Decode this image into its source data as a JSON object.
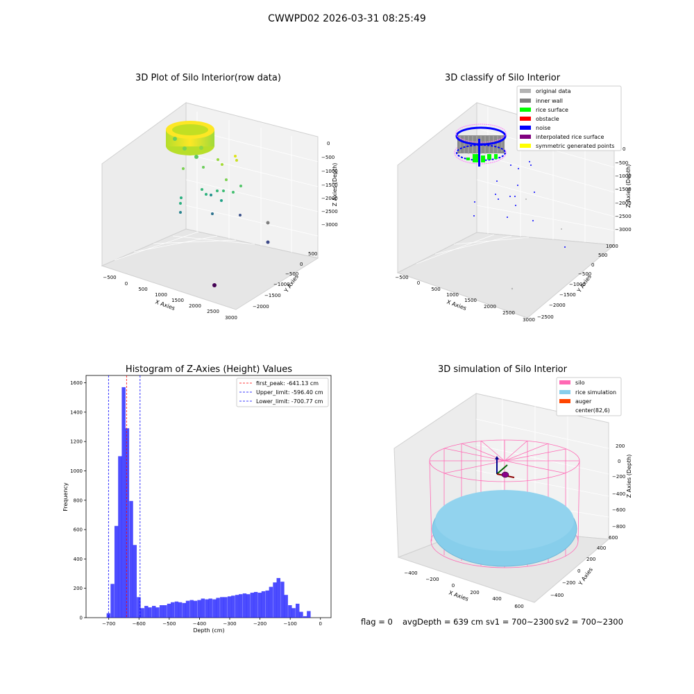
{
  "figure_title": "CWWPD02 2026-03-31 08:25:49",
  "status_line": {
    "flag": "flag = 0",
    "avg_depth": "avgDepth = 639 cm",
    "sv1": "sv1 = 700~2300",
    "sv2": "sv2 = 700~2300"
  },
  "chart_data": [
    {
      "type": "scatter",
      "projection": "3d",
      "title": "3D Plot of Silo Interior(row data)",
      "xlabel": "X Axies",
      "ylabel": "Y Axies",
      "zlabel": "Z Axies (Depth)",
      "x_ticks": [
        "−500",
        "0",
        "500",
        "1000",
        "1500",
        "2000",
        "2500",
        "3000"
      ],
      "y_ticks": [
        "500",
        "0",
        "−500",
        "−1000",
        "−1500",
        "−2000"
      ],
      "z_ticks": [
        "0",
        "−500",
        "−1000",
        "−1500",
        "−2000",
        "−2500",
        "−3000"
      ],
      "grid": true,
      "colormap": "viridis",
      "description_points": "dense ring of points near z≈−600 around center (82,6), sparse noise points down to z≈−3000"
    },
    {
      "type": "scatter",
      "projection": "3d",
      "title": "3D classify of Silo Interior",
      "xlabel": "X Axies",
      "ylabel": "Y Axies",
      "zlabel": "Z Axies (Depth)",
      "x_ticks": [
        "−500",
        "0",
        "500",
        "1000",
        "1500",
        "2000",
        "2500",
        "3000"
      ],
      "y_ticks": [
        "1000",
        "500",
        "0",
        "−500",
        "−1000",
        "−1500",
        "−2000",
        "−2500"
      ],
      "z_ticks": [
        "0",
        "−500",
        "−1000",
        "−1500",
        "−2000",
        "−2500",
        "−3000"
      ],
      "grid": true,
      "legend": [
        {
          "label": "original data",
          "color": "#b3b3b3"
        },
        {
          "label": "inner wall",
          "color": "#808080"
        },
        {
          "label": "rice surface",
          "color": "#00ff00"
        },
        {
          "label": "obstacle",
          "color": "#ff0000"
        },
        {
          "label": "noise",
          "color": "#0000ff"
        },
        {
          "label": "interpolated rice surface",
          "color": "#800080"
        },
        {
          "label": "symmetric generated points",
          "color": "#ffff00"
        }
      ],
      "legend_position": "upper-right"
    },
    {
      "type": "bar",
      "subtype": "histogram",
      "title": "Histogram of Z-Axies (Height) Values",
      "xlabel": "Depth (cm)",
      "ylabel": "Frequency",
      "xlim": [
        -775,
        35
      ],
      "ylim": [
        0,
        1650
      ],
      "x_ticks": [
        "−700",
        "−600",
        "−500",
        "−400",
        "−300",
        "−200",
        "−100",
        "0"
      ],
      "y_ticks": [
        "0",
        "200",
        "400",
        "600",
        "800",
        "1000",
        "1200",
        "1400",
        "1600"
      ],
      "bar_color": "#0000ff",
      "bin_width": 12.5,
      "bins": [
        {
          "x0": -707,
          "v": 30
        },
        {
          "x0": -694,
          "v": 230
        },
        {
          "x0": -681,
          "v": 625
        },
        {
          "x0": -669,
          "v": 1100
        },
        {
          "x0": -657,
          "v": 1570
        },
        {
          "x0": -645,
          "v": 1290
        },
        {
          "x0": -632,
          "v": 795
        },
        {
          "x0": -620,
          "v": 495
        },
        {
          "x0": -607,
          "v": 140
        },
        {
          "x0": -595,
          "v": 65
        },
        {
          "x0": -582,
          "v": 80
        },
        {
          "x0": -570,
          "v": 70
        },
        {
          "x0": -557,
          "v": 80
        },
        {
          "x0": -545,
          "v": 70
        },
        {
          "x0": -532,
          "v": 85
        },
        {
          "x0": -520,
          "v": 85
        },
        {
          "x0": -507,
          "v": 95
        },
        {
          "x0": -495,
          "v": 105
        },
        {
          "x0": -482,
          "v": 110
        },
        {
          "x0": -470,
          "v": 105
        },
        {
          "x0": -457,
          "v": 100
        },
        {
          "x0": -445,
          "v": 115
        },
        {
          "x0": -432,
          "v": 120
        },
        {
          "x0": -420,
          "v": 115
        },
        {
          "x0": -407,
          "v": 120
        },
        {
          "x0": -395,
          "v": 130
        },
        {
          "x0": -382,
          "v": 125
        },
        {
          "x0": -370,
          "v": 130
        },
        {
          "x0": -357,
          "v": 125
        },
        {
          "x0": -345,
          "v": 135
        },
        {
          "x0": -332,
          "v": 140
        },
        {
          "x0": -320,
          "v": 140
        },
        {
          "x0": -307,
          "v": 145
        },
        {
          "x0": -295,
          "v": 150
        },
        {
          "x0": -282,
          "v": 155
        },
        {
          "x0": -270,
          "v": 160
        },
        {
          "x0": -257,
          "v": 165
        },
        {
          "x0": -245,
          "v": 160
        },
        {
          "x0": -232,
          "v": 170
        },
        {
          "x0": -220,
          "v": 175
        },
        {
          "x0": -207,
          "v": 170
        },
        {
          "x0": -195,
          "v": 180
        },
        {
          "x0": -182,
          "v": 185
        },
        {
          "x0": -170,
          "v": 210
        },
        {
          "x0": -157,
          "v": 240
        },
        {
          "x0": -145,
          "v": 270
        },
        {
          "x0": -132,
          "v": 245
        },
        {
          "x0": -120,
          "v": 155
        },
        {
          "x0": -107,
          "v": 85
        },
        {
          "x0": -95,
          "v": 65
        },
        {
          "x0": -82,
          "v": 95
        },
        {
          "x0": -70,
          "v": 40
        },
        {
          "x0": -57,
          "v": 10
        },
        {
          "x0": -45,
          "v": 45
        }
      ],
      "vlines": [
        {
          "label": "first_peak: -641.13 cm",
          "x": -641.13,
          "color": "#ff0000"
        },
        {
          "label": "Upper_limit: -596.40 cm",
          "x": -596.4,
          "color": "#0000ff"
        },
        {
          "label": "Lower_limit: -700.77 cm",
          "x": -700.77,
          "color": "#0000ff"
        }
      ],
      "legend_position": "upper-right",
      "grid": false
    },
    {
      "type": "scatter",
      "projection": "3d",
      "title": "3D simulation of Silo Interior",
      "xlabel": "X Axies",
      "ylabel": "Y Axies",
      "zlabel": "Z Axies (Depth)",
      "x_ticks": [
        "−400",
        "−200",
        "0",
        "200",
        "400",
        "600"
      ],
      "y_ticks": [
        "600",
        "400",
        "200",
        "0",
        "−200",
        "−400"
      ],
      "z_ticks": [
        "200",
        "0",
        "−200",
        "−400",
        "−600",
        "−800"
      ],
      "grid": true,
      "legend": [
        {
          "label": "silo",
          "color": "#ff69b4"
        },
        {
          "label": "rice simulation",
          "color": "#87ceeb"
        },
        {
          "label": "auger",
          "color": "#ff4500"
        },
        {
          "label": "center(82,6)",
          "color": ""
        }
      ],
      "legend_position": "upper-right"
    }
  ]
}
